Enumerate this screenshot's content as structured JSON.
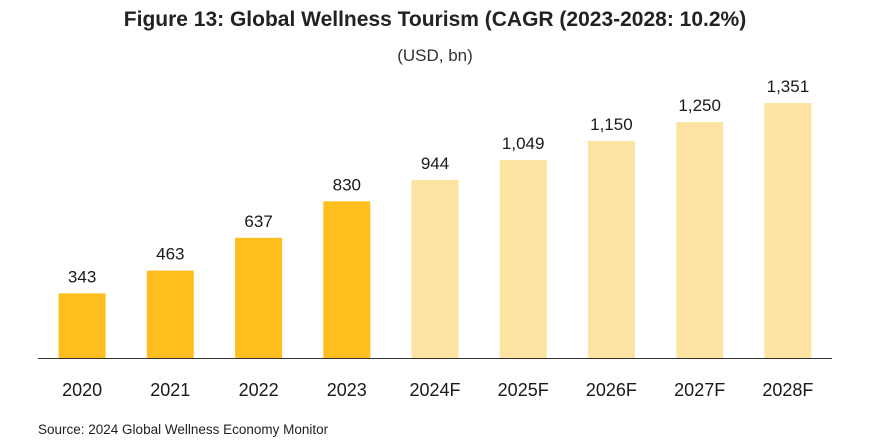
{
  "title": "Figure 13: Global Wellness Tourism (CAGR (2023-2028: 10.2%)",
  "subtitle": "(USD, bn)",
  "source": "Source: 2024 Global Wellness Economy Monitor",
  "colors": {
    "actual": "#FDBE1E",
    "forecast": "#FDE3A1",
    "axis": "#333333"
  },
  "chart_data": {
    "type": "bar",
    "title": "Figure 13: Global Wellness Tourism (CAGR (2023-2028: 10.2%)",
    "subtitle": "(USD, bn)",
    "categories": [
      "2020",
      "2021",
      "2022",
      "2023",
      "2024F",
      "2025F",
      "2026F",
      "2027F",
      "2028F"
    ],
    "values": [
      343,
      463,
      637,
      830,
      944,
      1049,
      1150,
      1250,
      1351
    ],
    "value_labels": [
      "343",
      "463",
      "637",
      "830",
      "944",
      "1,049",
      "1,150",
      "1,250",
      "1,351"
    ],
    "forecast": [
      false,
      false,
      false,
      false,
      true,
      true,
      true,
      true,
      true
    ],
    "ylim": [
      0,
      1351
    ],
    "grid": false,
    "legend": "none"
  }
}
